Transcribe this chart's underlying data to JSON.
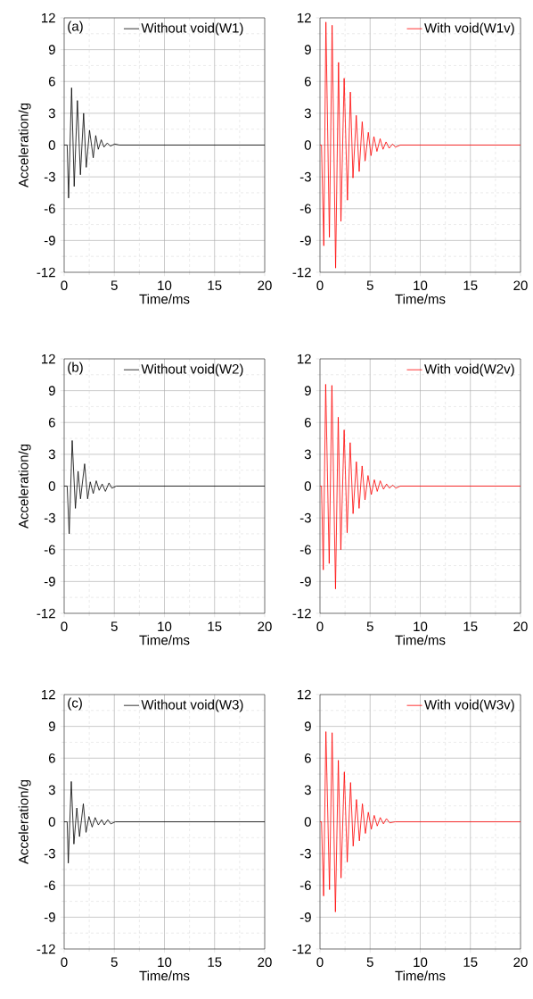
{
  "chart_data": [
    {
      "type": "line",
      "xlabel": "Time/ms",
      "ylabel": "Acceleration/g",
      "annotations": [
        "(a)"
      ],
      "xlim": [
        0,
        20
      ],
      "ylim": [
        -12,
        12
      ],
      "xticks": [
        0,
        5,
        10,
        15,
        20
      ],
      "yticks": [
        -12,
        -9,
        -6,
        -3,
        0,
        3,
        6,
        9,
        12
      ],
      "grid": true,
      "legend": "top",
      "line_style": "solid",
      "marker": "none",
      "series": [
        {
          "name": "Without void(W1)",
          "color": "#000000",
          "x": [
            0,
            0.3,
            0.44,
            0.74,
            1.0,
            1.32,
            1.62,
            1.94,
            2.2,
            2.53,
            2.9,
            3.15,
            3.4,
            3.7,
            3.97,
            4.3,
            4.6,
            5.05,
            5.5,
            20
          ],
          "values": [
            0,
            0,
            -5.0,
            5.4,
            -3.9,
            4.2,
            -2.8,
            3.0,
            -2.1,
            1.4,
            -1.2,
            0.9,
            -0.4,
            0.5,
            -0.2,
            0.2,
            -0.1,
            0.1,
            0,
            0
          ]
        }
      ]
    },
    {
      "type": "line",
      "xlabel": "Time/ms",
      "xlim": [
        0,
        20
      ],
      "ylim": [
        -12,
        12
      ],
      "xticks": [
        0,
        5,
        10,
        15,
        20
      ],
      "yticks": [
        -12,
        -9,
        -6,
        -3,
        0,
        3,
        6,
        9,
        12
      ],
      "grid": true,
      "legend": "top right",
      "line_style": "solid",
      "marker": "none",
      "series": [
        {
          "name": "With void(W1v)",
          "color": "#ff0000",
          "x": [
            0,
            0.15,
            0.38,
            0.59,
            0.94,
            1.21,
            1.56,
            1.85,
            2.09,
            2.41,
            2.74,
            3.03,
            3.29,
            3.62,
            3.91,
            4.21,
            4.5,
            4.82,
            5.09,
            5.38,
            5.68,
            6.0,
            6.29,
            6.59,
            6.9,
            7.24,
            7.53,
            8.0,
            20
          ],
          "values": [
            0,
            0,
            -9.5,
            11.6,
            -8.7,
            11.3,
            -11.6,
            7.8,
            -7.2,
            6.3,
            -5.2,
            5.0,
            -3.1,
            2.8,
            -2.5,
            2.2,
            -1.5,
            1.2,
            -1.0,
            0.8,
            -0.6,
            0.6,
            -0.4,
            0.3,
            -0.3,
            0.1,
            -0.2,
            0,
            0
          ]
        }
      ]
    },
    {
      "type": "line",
      "xlabel": "Time/ms",
      "ylabel": "Acceleration/g",
      "annotations": [
        "(b)"
      ],
      "xlim": [
        0,
        20
      ],
      "ylim": [
        -12,
        12
      ],
      "xticks": [
        0,
        5,
        10,
        15,
        20
      ],
      "yticks": [
        -12,
        -9,
        -6,
        -3,
        0,
        3,
        6,
        9,
        12
      ],
      "grid": true,
      "legend": "top",
      "line_style": "solid",
      "marker": "none",
      "series": [
        {
          "name": "Without void(W2)",
          "color": "#000000",
          "x": [
            0,
            0.3,
            0.5,
            0.8,
            1.12,
            1.39,
            1.63,
            2.04,
            2.34,
            2.6,
            2.9,
            3.2,
            3.49,
            3.79,
            4.11,
            4.47,
            4.76,
            5.2,
            20
          ],
          "values": [
            0,
            0,
            -4.5,
            4.3,
            -2.1,
            1.4,
            -1.2,
            2.1,
            -1.2,
            0.4,
            -0.7,
            0.5,
            -0.4,
            0.2,
            -0.5,
            0.3,
            -0.2,
            0,
            0
          ]
        }
      ]
    },
    {
      "type": "line",
      "xlabel": "Time/ms",
      "xlim": [
        0,
        20
      ],
      "ylim": [
        -12,
        12
      ],
      "xticks": [
        0,
        5,
        10,
        15,
        20
      ],
      "yticks": [
        -12,
        -9,
        -6,
        -3,
        0,
        3,
        6,
        9,
        12
      ],
      "grid": true,
      "legend": "top right",
      "line_style": "solid",
      "marker": "none",
      "series": [
        {
          "name": "With void(W2v)",
          "color": "#ff0000",
          "x": [
            0,
            0.15,
            0.33,
            0.57,
            0.92,
            1.19,
            1.55,
            1.82,
            2.08,
            2.41,
            2.71,
            3.01,
            3.3,
            3.63,
            3.9,
            4.2,
            4.49,
            4.79,
            5.12,
            5.42,
            5.71,
            6.01,
            6.34,
            6.64,
            6.93,
            7.26,
            7.56,
            8.0,
            20
          ],
          "values": [
            0,
            0,
            -7.9,
            9.6,
            -7.3,
            9.5,
            -9.7,
            6.5,
            -6.0,
            5.3,
            -4.4,
            4.1,
            -2.6,
            2.3,
            -2.1,
            1.9,
            -1.3,
            1.0,
            -0.8,
            0.6,
            -0.5,
            0.5,
            -0.3,
            0.2,
            -0.2,
            0.1,
            -0.2,
            0,
            0
          ]
        }
      ]
    },
    {
      "type": "line",
      "xlabel": "Time/ms",
      "ylabel": "Acceleration/g",
      "annotations": [
        "(c)"
      ],
      "xlim": [
        0,
        20
      ],
      "ylim": [
        -12,
        12
      ],
      "xticks": [
        0,
        5,
        10,
        15,
        20
      ],
      "yticks": [
        -12,
        -9,
        -6,
        -3,
        0,
        3,
        6,
        9,
        12
      ],
      "grid": true,
      "legend": "top",
      "line_style": "solid",
      "marker": "none",
      "series": [
        {
          "name": "Without void(W3)",
          "color": "#000000",
          "x": [
            0,
            0.3,
            0.41,
            0.71,
            0.97,
            1.26,
            1.53,
            1.91,
            2.18,
            2.47,
            2.79,
            3.09,
            3.41,
            3.74,
            4.0,
            4.35,
            4.65,
            5.1,
            20
          ],
          "values": [
            0,
            0,
            -3.9,
            3.8,
            -2.1,
            1.3,
            -1.4,
            1.7,
            -1.0,
            0.5,
            -0.5,
            0.4,
            -0.3,
            0.2,
            -0.3,
            0.2,
            -0.2,
            0,
            0
          ]
        }
      ]
    },
    {
      "type": "line",
      "xlabel": "Time/ms",
      "xlim": [
        0,
        20
      ],
      "ylim": [
        -12,
        12
      ],
      "xticks": [
        0,
        5,
        10,
        15,
        20
      ],
      "yticks": [
        -12,
        -9,
        -6,
        -3,
        0,
        3,
        6,
        9,
        12
      ],
      "grid": true,
      "legend": "top right",
      "line_style": "solid",
      "marker": "none",
      "series": [
        {
          "name": "With void(W3v)",
          "color": "#ff0000",
          "x": [
            0,
            0.15,
            0.36,
            0.59,
            0.95,
            1.21,
            1.54,
            1.83,
            2.1,
            2.43,
            2.72,
            3.05,
            3.31,
            3.64,
            3.93,
            4.23,
            4.53,
            4.82,
            5.12,
            5.41,
            5.71,
            6.01,
            6.33,
            6.63,
            6.95,
            7.5,
            20
          ],
          "values": [
            0,
            0,
            -7.0,
            8.5,
            -6.4,
            8.4,
            -8.5,
            5.8,
            -5.3,
            4.7,
            -3.8,
            3.7,
            -2.3,
            2.1,
            -1.8,
            1.7,
            -1.1,
            0.9,
            -0.7,
            0.6,
            -0.4,
            0.4,
            -0.2,
            0.3,
            -0.1,
            0,
            0
          ]
        }
      ]
    }
  ]
}
